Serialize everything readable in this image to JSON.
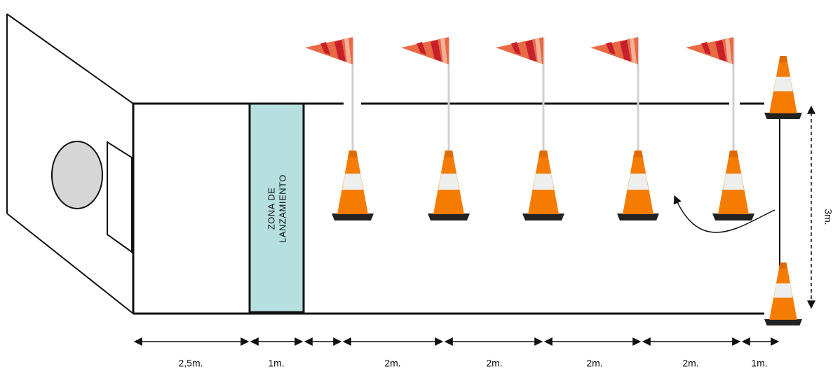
{
  "zone_label": {
    "lines": [
      "ZONA DE",
      "LANZAMIENTO"
    ]
  },
  "dimensions": {
    "horizontal": [
      "2,5m.",
      "1m.",
      "2m.",
      "2m.",
      "2m.",
      "2m.",
      "1m."
    ],
    "vertical": "3m."
  }
}
